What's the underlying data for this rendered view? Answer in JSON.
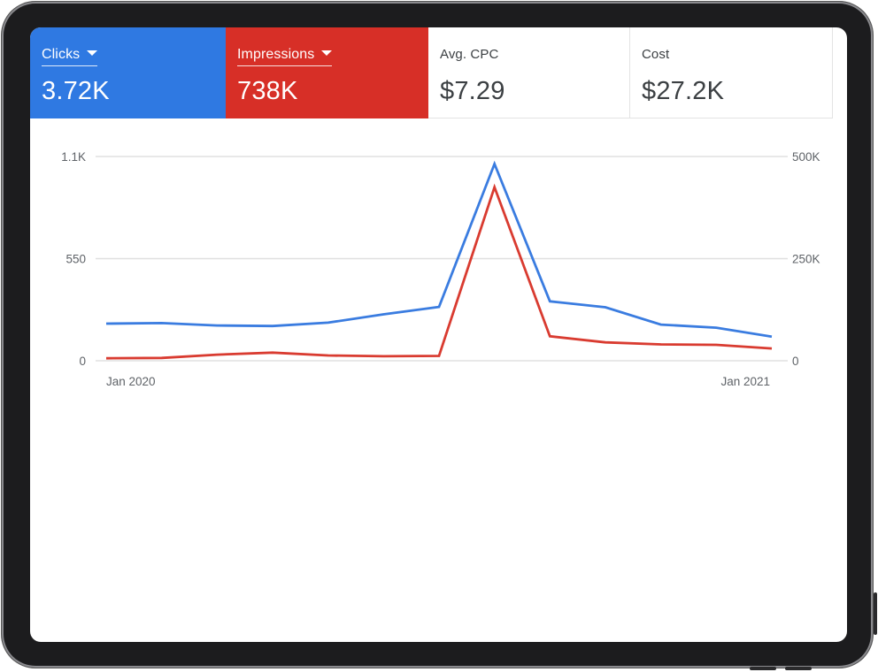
{
  "metrics": [
    {
      "label": "Clicks",
      "value": "3.72K",
      "color": "#2f79e2"
    },
    {
      "label": "Impressions",
      "value": "738K",
      "color": "#d72f27"
    },
    {
      "label": "Avg. CPC",
      "value": "$7.29"
    },
    {
      "label": "Cost",
      "value": "$27.2K"
    }
  ],
  "chart_data": {
    "type": "line",
    "x_tick_labels": [
      "Jan 2020",
      "Jan 2021"
    ],
    "y_left": {
      "ticks": [
        "0",
        "550",
        "1.1K"
      ],
      "range": [
        0,
        1100
      ]
    },
    "y_right": {
      "ticks": [
        "0",
        "250K",
        "500K"
      ],
      "range": [
        0,
        500000
      ]
    },
    "grid": true,
    "series": [
      {
        "name": "Clicks",
        "axis": "left",
        "color": "#3a7ce0",
        "values": [
          200,
          203,
          190,
          187,
          205,
          250,
          290,
          1060,
          320,
          288,
          195,
          178,
          130
        ]
      },
      {
        "name": "Impressions",
        "axis": "right",
        "color": "#d93b30",
        "values": [
          6000,
          7000,
          15000,
          20000,
          13000,
          11000,
          12000,
          425000,
          60000,
          45000,
          40000,
          39000,
          30000
        ]
      }
    ]
  }
}
